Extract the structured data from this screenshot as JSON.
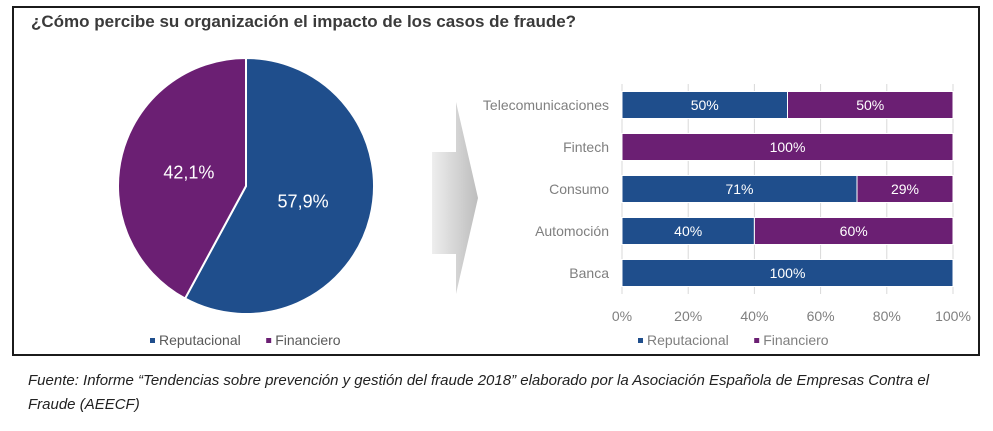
{
  "title": "¿Cómo percibe su organización el impacto de los casos de fraude?",
  "source_note": "Fuente: Informe “Tendencias sobre prevención y gestión del fraude 2018” elaborado por la Asociación Española de Empresas Contra el Fraude (AEECF)",
  "colors": {
    "reputacional": "#1f4e8c",
    "financiero": "#6b1f73",
    "axis_text": "#7f7f7f",
    "grid": "#d9d9d9"
  },
  "chart_data": [
    {
      "type": "pie",
      "title": "",
      "slices": [
        {
          "name": "Reputacional",
          "value": 57.9,
          "label": "57,9%"
        },
        {
          "name": "Financiero",
          "value": 42.1,
          "label": "42,1%"
        }
      ],
      "legend": [
        "Reputacional",
        "Financiero"
      ],
      "legend_position": "bottom"
    },
    {
      "type": "bar",
      "orientation": "horizontal",
      "stacked": "percent",
      "title": "",
      "categories": [
        "Telecomunicaciones",
        "Fintech",
        "Consumo",
        "Automoción",
        "Banca"
      ],
      "series": [
        {
          "name": "Reputacional",
          "values": [
            50,
            0,
            71,
            40,
            100
          ],
          "labels": [
            "50%",
            "",
            "71%",
            "40%",
            "100%"
          ]
        },
        {
          "name": "Financiero",
          "values": [
            50,
            100,
            29,
            60,
            0
          ],
          "labels": [
            "50%",
            "100%",
            "29%",
            "60%",
            ""
          ]
        }
      ],
      "xlim": [
        0,
        100
      ],
      "x_ticks": [
        "0%",
        "20%",
        "40%",
        "60%",
        "80%",
        "100%"
      ],
      "grid": true,
      "legend": [
        "Reputacional",
        "Financiero"
      ],
      "legend_position": "bottom"
    }
  ]
}
